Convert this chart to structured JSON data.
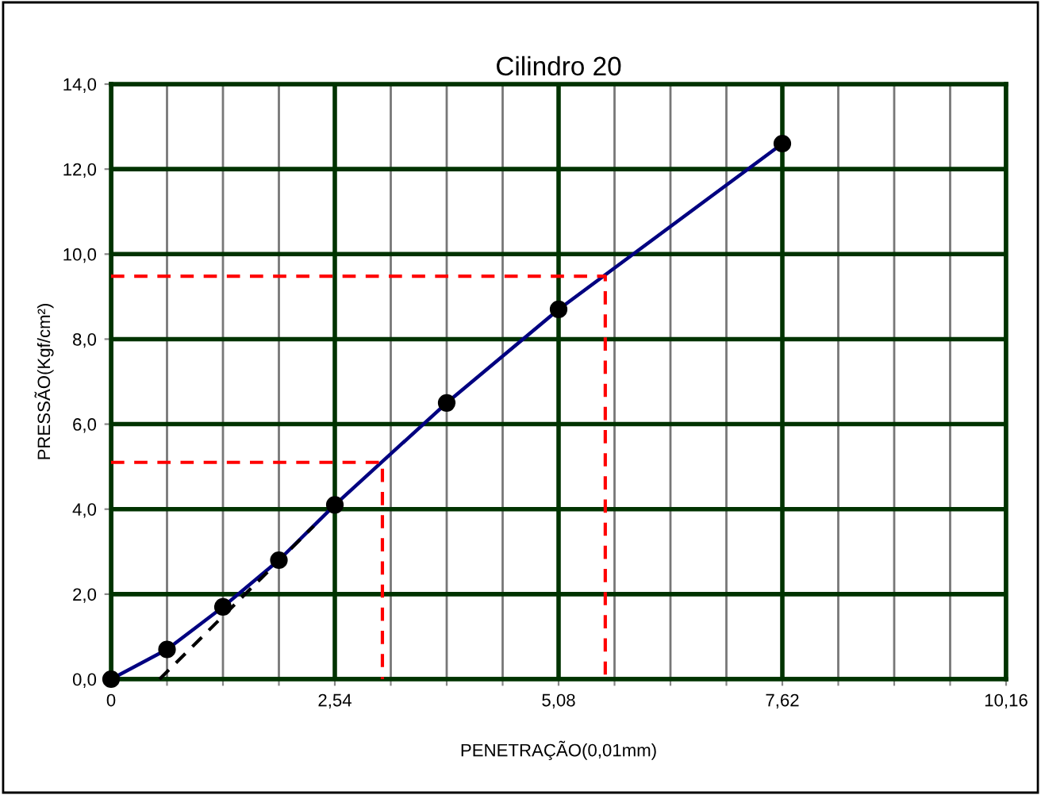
{
  "chart_data": {
    "type": "line",
    "title": "Cilindro 20",
    "xlabel": "PENETRAÇÃO(0,01mm)",
    "ylabel": "PRESSÃO(Kgf/cm²)",
    "x": [
      0,
      0.635,
      1.27,
      1.905,
      2.54,
      3.81,
      5.08,
      7.62
    ],
    "series": [
      {
        "color": "#000080",
        "values": [
          0,
          0.7,
          1.7,
          2.8,
          4.1,
          6.5,
          8.7,
          12.6
        ],
        "marker": "circle",
        "line_style": "solid"
      },
      {
        "color": "#000000",
        "x": [
          0.55,
          2.3
        ],
        "values": [
          0,
          3.6
        ],
        "marker": "none",
        "line_style": "dashed"
      },
      {
        "color": "#ff0000",
        "x": [
          0,
          3.08,
          3.08
        ],
        "values": [
          5.1,
          5.1,
          0
        ],
        "marker": "none",
        "line_style": "dashed"
      },
      {
        "color": "#ff0000",
        "x": [
          0,
          5.61,
          5.61
        ],
        "values": [
          9.48,
          9.48,
          0
        ],
        "marker": "none",
        "line_style": "dashed"
      }
    ],
    "xlim": [
      0,
      10.16
    ],
    "ylim": [
      0,
      14
    ],
    "xticks": [
      0,
      {
        "value": 0.635,
        "label": null
      },
      {
        "value": 1.27,
        "label": null
      },
      {
        "value": 1.905,
        "label": null
      },
      {
        "value": 2.54,
        "label": "2,54"
      },
      {
        "value": 3.175,
        "label": null
      },
      {
        "value": 3.81,
        "label": null
      },
      {
        "value": 4.445,
        "label": null
      },
      {
        "value": 5.08,
        "label": "5,08"
      },
      {
        "value": 5.715,
        "label": null
      },
      {
        "value": 6.35,
        "label": null
      },
      {
        "value": 6.985,
        "label": null
      },
      {
        "value": 7.62,
        "label": "7,62"
      },
      {
        "value": 8.255,
        "label": null
      },
      {
        "value": 8.89,
        "label": null
      },
      {
        "value": 9.525,
        "label": null
      },
      {
        "value": 10.16,
        "label": "10,16"
      }
    ],
    "yticks": [
      {
        "value": 0,
        "label": "0,0"
      },
      {
        "value": 2,
        "label": "2,0"
      },
      {
        "value": 4,
        "label": "4,0"
      },
      {
        "value": 6,
        "label": "6,0"
      },
      {
        "value": 8,
        "label": "8,0"
      },
      {
        "value": 10,
        "label": "10,0"
      },
      {
        "value": 12,
        "label": "12,0"
      },
      {
        "value": 14,
        "label": "14,0"
      }
    ],
    "grid": true,
    "legend": false
  }
}
